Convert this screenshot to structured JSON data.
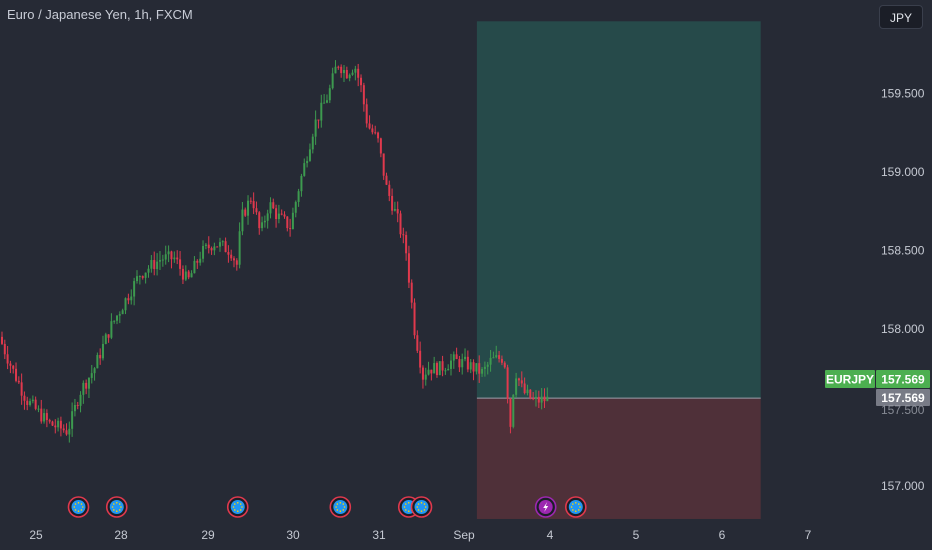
{
  "header": {
    "title": "Euro / Japanese Yen, 1h, FXCM",
    "currency_button": "JPY"
  },
  "price_axis": {
    "last_symbol": "EURJPY",
    "last_price": "157.569",
    "crosshair_price": "157.569",
    "partial_label": "157.500"
  },
  "colors": {
    "background": "#262a35",
    "bull": "#3d9a4f",
    "bear": "#e0394d",
    "profit_zone": "#264a4a",
    "loss_zone": "#4f3039",
    "badge_green": "#4caf50",
    "badge_gray": "#787b86",
    "event_icon": "#2196f3",
    "event_ring": "#e0394d",
    "flash_icon": "#9c27b0"
  },
  "events": {
    "icon_name": "euro-flag-icon",
    "flash_icon_name": "lightning-icon"
  },
  "chart_data": {
    "type": "candlestick",
    "title": "Euro / Japanese Yen, 1h, FXCM",
    "ylim": [
      156.78,
      160.12
    ],
    "y_ticks": [
      "157.000",
      "158.000",
      "158.500",
      "159.000",
      "159.500"
    ],
    "x_ticks": [
      {
        "label": "25",
        "day": 0
      },
      {
        "label": "28",
        "day": 1
      },
      {
        "label": "29",
        "day": 2
      },
      {
        "label": "30",
        "day": 3
      },
      {
        "label": "31",
        "day": 4
      },
      {
        "label": "Sep",
        "day": 5
      },
      {
        "label": "4",
        "day": 6
      },
      {
        "label": "5",
        "day": 7
      },
      {
        "label": "6",
        "day": 8
      },
      {
        "label": "7",
        "day": 9
      }
    ],
    "price_path": [
      [
        -0.4,
        157.95
      ],
      [
        -0.25,
        157.75
      ],
      [
        -0.08,
        157.55
      ],
      [
        0.18,
        157.4
      ],
      [
        0.4,
        157.35
      ],
      [
        0.45,
        157.42
      ],
      [
        0.55,
        157.6
      ],
      [
        0.72,
        157.75
      ],
      [
        0.9,
        158.0
      ],
      [
        1.05,
        158.15
      ],
      [
        1.25,
        158.35
      ],
      [
        1.5,
        158.45
      ],
      [
        1.65,
        158.45
      ],
      [
        1.8,
        158.3
      ],
      [
        1.95,
        158.48
      ],
      [
        2.1,
        158.55
      ],
      [
        2.3,
        158.5
      ],
      [
        2.38,
        158.4
      ],
      [
        2.42,
        158.7
      ],
      [
        2.55,
        158.85
      ],
      [
        2.65,
        158.6
      ],
      [
        2.75,
        158.8
      ],
      [
        2.85,
        158.72
      ],
      [
        3.0,
        158.65
      ],
      [
        3.1,
        158.9
      ],
      [
        3.28,
        159.3
      ],
      [
        3.45,
        159.5
      ],
      [
        3.55,
        159.7
      ],
      [
        3.65,
        159.63
      ],
      [
        3.75,
        159.68
      ],
      [
        3.82,
        159.55
      ],
      [
        3.9,
        159.3
      ],
      [
        4.02,
        159.2
      ],
      [
        4.12,
        158.9
      ],
      [
        4.25,
        158.7
      ],
      [
        4.35,
        158.5
      ],
      [
        4.45,
        158.0
      ],
      [
        4.55,
        157.7
      ],
      [
        4.6,
        157.75
      ],
      [
        4.75,
        157.75
      ],
      [
        4.9,
        157.8
      ],
      [
        5.05,
        157.78
      ],
      [
        5.25,
        157.72
      ],
      [
        5.35,
        157.8
      ],
      [
        5.5,
        157.82
      ],
      [
        5.58,
        157.35
      ],
      [
        5.62,
        157.75
      ],
      [
        5.72,
        157.6
      ],
      [
        5.85,
        157.54
      ],
      [
        5.97,
        157.55
      ]
    ],
    "position": {
      "entry": 157.56,
      "target": 159.96,
      "stop": 156.79,
      "start_day": 5.15,
      "end_day": 8.45
    },
    "event_days": [
      0.5,
      0.95,
      2.35,
      3.55,
      4.35,
      4.5,
      6.3
    ],
    "flash_event_day": 5.95
  }
}
